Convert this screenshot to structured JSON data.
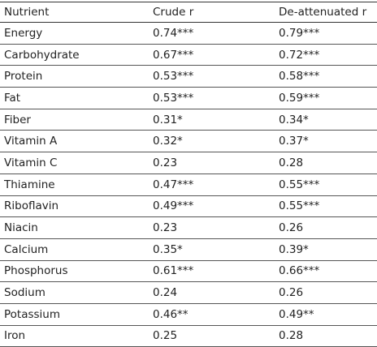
{
  "table": {
    "headers": [
      "Nutrient",
      "Crude r",
      "De-attenuated r"
    ],
    "rows": [
      [
        "Energy",
        "0.74***",
        "0.79***"
      ],
      [
        "Carbohydrate",
        "0.67***",
        "0.72***"
      ],
      [
        "Protein",
        "0.53***",
        "0.58***"
      ],
      [
        "Fat",
        "0.53***",
        "0.59***"
      ],
      [
        "Fiber",
        "0.31*",
        "0.34*"
      ],
      [
        "Vitamin A",
        "0.32*",
        "0.37*"
      ],
      [
        "Vitamin C",
        "0.23",
        "0.28"
      ],
      [
        "Thiamine",
        "0.47***",
        "0.55***"
      ],
      [
        "Riboflavin",
        "0.49***",
        "0.55***"
      ],
      [
        "Niacin",
        "0.23",
        "0.26"
      ],
      [
        "Calcium",
        "0.35*",
        "0.39*"
      ],
      [
        "Phosphorus",
        "0.61***",
        "0.66***"
      ],
      [
        "Sodium",
        "0.24",
        "0.26"
      ],
      [
        "Potassium",
        "0.46**",
        "0.49**"
      ],
      [
        "Iron",
        "0.25",
        "0.28"
      ]
    ]
  }
}
